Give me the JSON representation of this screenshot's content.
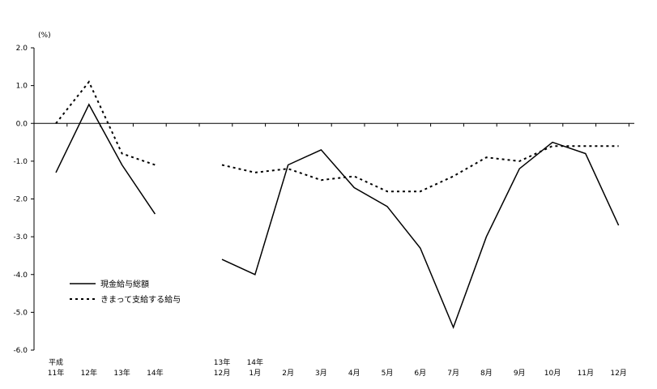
{
  "chart_data": {
    "type": "line",
    "unit_label": "(%)",
    "ylim": [
      -6.0,
      2.0
    ],
    "y_ticks": [
      "2.0",
      "1.0",
      "0.0",
      "-1.0",
      "-2.0",
      "-3.0",
      "-4.0",
      "-5.0",
      "-6.0"
    ],
    "y_tick_values": [
      2,
      1,
      0,
      -1,
      -2,
      -3,
      -4,
      -5,
      -6
    ],
    "grid": false,
    "legend_position": "bottom-left",
    "groups": [
      {
        "categories": [
          {
            "top": "平成",
            "bottom": "11年"
          },
          {
            "top": "",
            "bottom": "12年"
          },
          {
            "top": "",
            "bottom": "13年"
          },
          {
            "top": "",
            "bottom": "14年"
          }
        ],
        "series": [
          {
            "name": "現金給与総額",
            "style": "solid",
            "values": [
              -1.3,
              0.5,
              -1.1,
              -2.4
            ]
          },
          {
            "name": "きまって支給する給与",
            "style": "dotted",
            "values": [
              0.0,
              1.1,
              -0.8,
              -1.1
            ]
          }
        ]
      },
      {
        "categories": [
          {
            "top": "13年",
            "bottom": "12月"
          },
          {
            "top": "14年",
            "bottom": "1月"
          },
          {
            "top": "",
            "bottom": "2月"
          },
          {
            "top": "",
            "bottom": "3月"
          },
          {
            "top": "",
            "bottom": "4月"
          },
          {
            "top": "",
            "bottom": "5月"
          },
          {
            "top": "",
            "bottom": "6月"
          },
          {
            "top": "",
            "bottom": "7月"
          },
          {
            "top": "",
            "bottom": "8月"
          },
          {
            "top": "",
            "bottom": "9月"
          },
          {
            "top": "",
            "bottom": "10月"
          },
          {
            "top": "",
            "bottom": "11月"
          },
          {
            "top": "",
            "bottom": "12月"
          }
        ],
        "series": [
          {
            "name": "現金給与総額",
            "style": "solid",
            "values": [
              -3.6,
              -4.0,
              -1.1,
              -0.7,
              -1.7,
              -2.2,
              -3.3,
              -5.4,
              -3.0,
              -1.2,
              -0.5,
              -0.8,
              -2.7
            ]
          },
          {
            "name": "きまって支給する給与",
            "style": "dotted",
            "values": [
              -1.1,
              -1.3,
              -1.2,
              -1.5,
              -1.4,
              -1.8,
              -1.8,
              -1.4,
              -0.9,
              -1.0,
              -0.6,
              -0.6,
              -0.6
            ]
          }
        ]
      }
    ],
    "legend": [
      {
        "name": "現金給与総額",
        "style": "solid"
      },
      {
        "name": "きまって支給する給与",
        "style": "dotted"
      }
    ]
  }
}
